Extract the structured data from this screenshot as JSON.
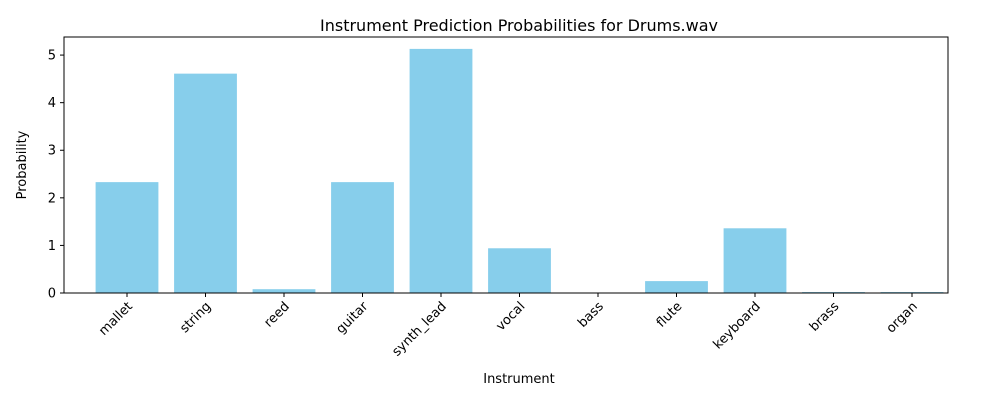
{
  "chart_data": {
    "type": "bar",
    "title": "Instrument Prediction Probabilities for Drums.wav",
    "xlabel": "Instrument",
    "ylabel": "Probability",
    "categories": [
      "mallet",
      "string",
      "reed",
      "guitar",
      "synth_lead",
      "vocal",
      "bass",
      "flute",
      "keyboard",
      "brass",
      "organ"
    ],
    "values": [
      2.33,
      4.61,
      0.08,
      2.33,
      5.13,
      0.94,
      0.0,
      0.25,
      1.36,
      0.02,
      0.02
    ],
    "ylim": [
      0,
      5.38
    ],
    "yticks": [
      0,
      1,
      2,
      3,
      4,
      5
    ],
    "bar_color": "#87ceeb",
    "grid": false,
    "legend": "none"
  }
}
